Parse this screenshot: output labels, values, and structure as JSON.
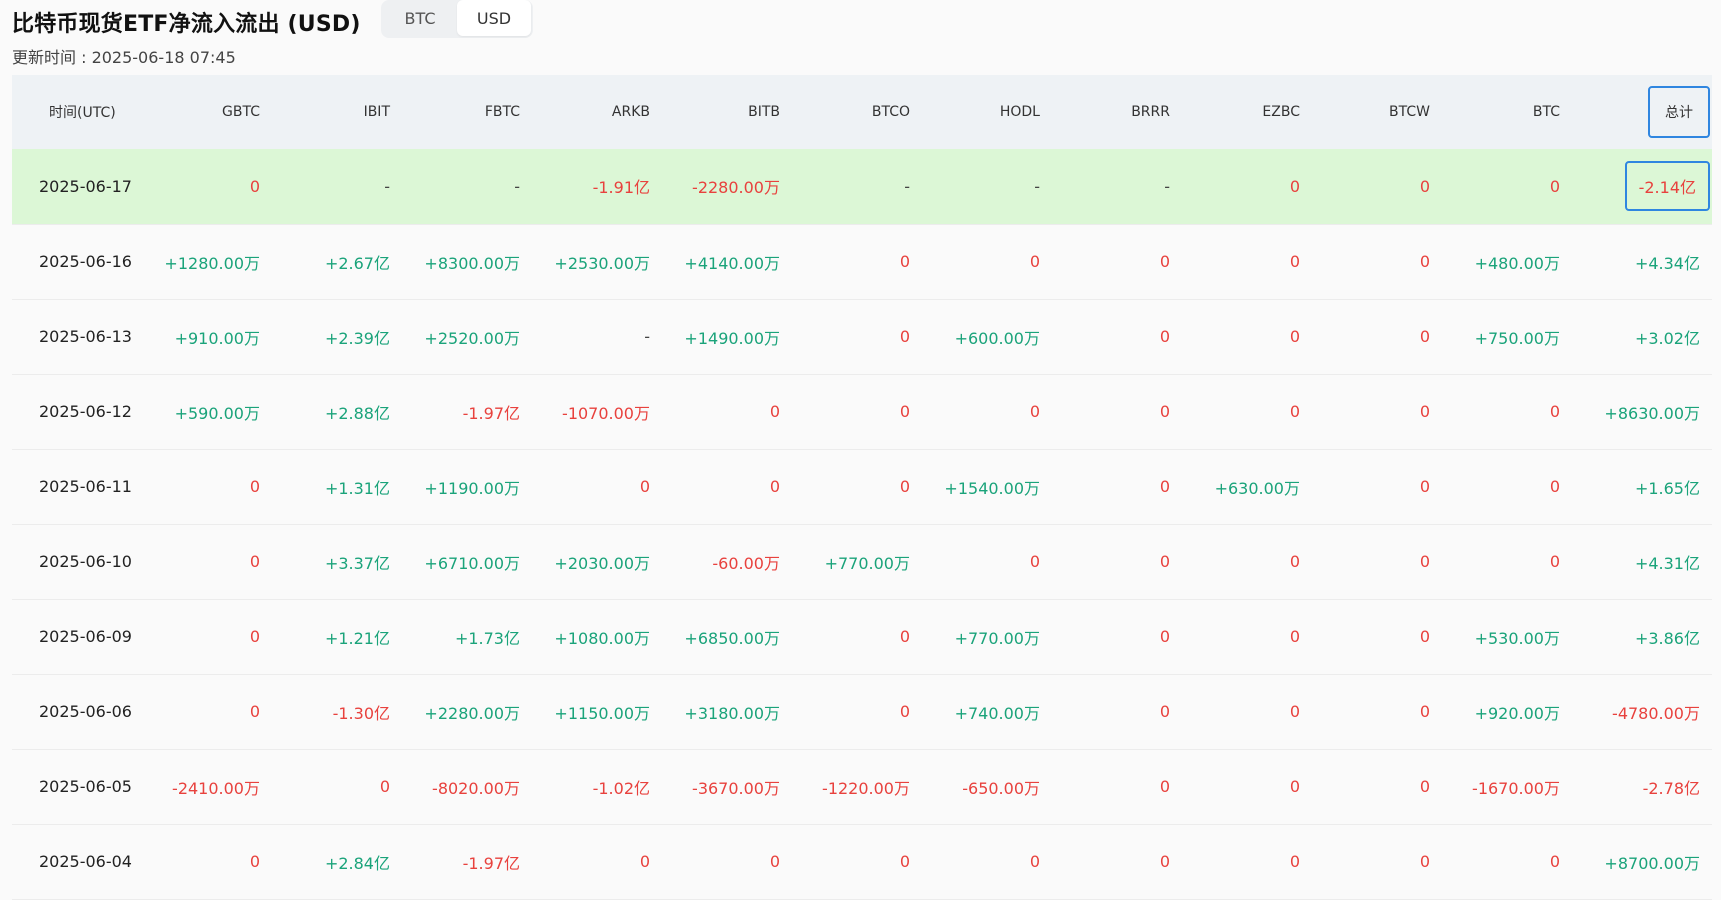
{
  "header": {
    "title": "比特币现货ETF净流入流出 (USD)",
    "updated": "更新时间 : 2025-06-18 07:45",
    "toggle": [
      {
        "label": "BTC",
        "active": false
      },
      {
        "label": "USD",
        "active": true
      }
    ]
  },
  "table": {
    "columns": [
      "时间(UTC)",
      "GBTC",
      "IBIT",
      "FBTC",
      "ARKB",
      "BITB",
      "BTCO",
      "HODL",
      "BRRR",
      "EZBC",
      "BTCW",
      "BTC",
      "总计"
    ],
    "rows": [
      {
        "date": "2025-06-17",
        "highlight": true,
        "values": [
          "0",
          "-",
          "-",
          "-1.91亿",
          "-2280.00万",
          "-",
          "-",
          "-",
          "0",
          "0",
          "0",
          "-2.14亿"
        ]
      },
      {
        "date": "2025-06-16",
        "highlight": false,
        "values": [
          "+1280.00万",
          "+2.67亿",
          "+8300.00万",
          "+2530.00万",
          "+4140.00万",
          "0",
          "0",
          "0",
          "0",
          "0",
          "+480.00万",
          "+4.34亿"
        ]
      },
      {
        "date": "2025-06-13",
        "highlight": false,
        "values": [
          "+910.00万",
          "+2.39亿",
          "+2520.00万",
          "-",
          "+1490.00万",
          "0",
          "+600.00万",
          "0",
          "0",
          "0",
          "+750.00万",
          "+3.02亿"
        ]
      },
      {
        "date": "2025-06-12",
        "highlight": false,
        "values": [
          "+590.00万",
          "+2.88亿",
          "-1.97亿",
          "-1070.00万",
          "0",
          "0",
          "0",
          "0",
          "0",
          "0",
          "0",
          "+8630.00万"
        ]
      },
      {
        "date": "2025-06-11",
        "highlight": false,
        "values": [
          "0",
          "+1.31亿",
          "+1190.00万",
          "0",
          "0",
          "0",
          "+1540.00万",
          "0",
          "+630.00万",
          "0",
          "0",
          "+1.65亿"
        ]
      },
      {
        "date": "2025-06-10",
        "highlight": false,
        "values": [
          "0",
          "+3.37亿",
          "+6710.00万",
          "+2030.00万",
          "-60.00万",
          "+770.00万",
          "0",
          "0",
          "0",
          "0",
          "0",
          "+4.31亿"
        ]
      },
      {
        "date": "2025-06-09",
        "highlight": false,
        "values": [
          "0",
          "+1.21亿",
          "+1.73亿",
          "+1080.00万",
          "+6850.00万",
          "0",
          "+770.00万",
          "0",
          "0",
          "0",
          "+530.00万",
          "+3.86亿"
        ]
      },
      {
        "date": "2025-06-06",
        "highlight": false,
        "values": [
          "0",
          "-1.30亿",
          "+2280.00万",
          "+1150.00万",
          "+3180.00万",
          "0",
          "+740.00万",
          "0",
          "0",
          "0",
          "+920.00万",
          "-4780.00万"
        ]
      },
      {
        "date": "2025-06-05",
        "highlight": false,
        "values": [
          "-2410.00万",
          "0",
          "-8020.00万",
          "-1.02亿",
          "-3670.00万",
          "-1220.00万",
          "-650.00万",
          "0",
          "0",
          "0",
          "-1670.00万",
          "-2.78亿"
        ]
      },
      {
        "date": "2025-06-04",
        "highlight": false,
        "values": [
          "0",
          "+2.84亿",
          "-1.97亿",
          "0",
          "0",
          "0",
          "0",
          "0",
          "0",
          "0",
          "0",
          "+8700.00万"
        ]
      }
    ]
  },
  "colors": {
    "positive": "#1aa37a",
    "negative": "#e8413d",
    "highlight_row": "#dcf7d6",
    "outline": "#2f86e0"
  }
}
